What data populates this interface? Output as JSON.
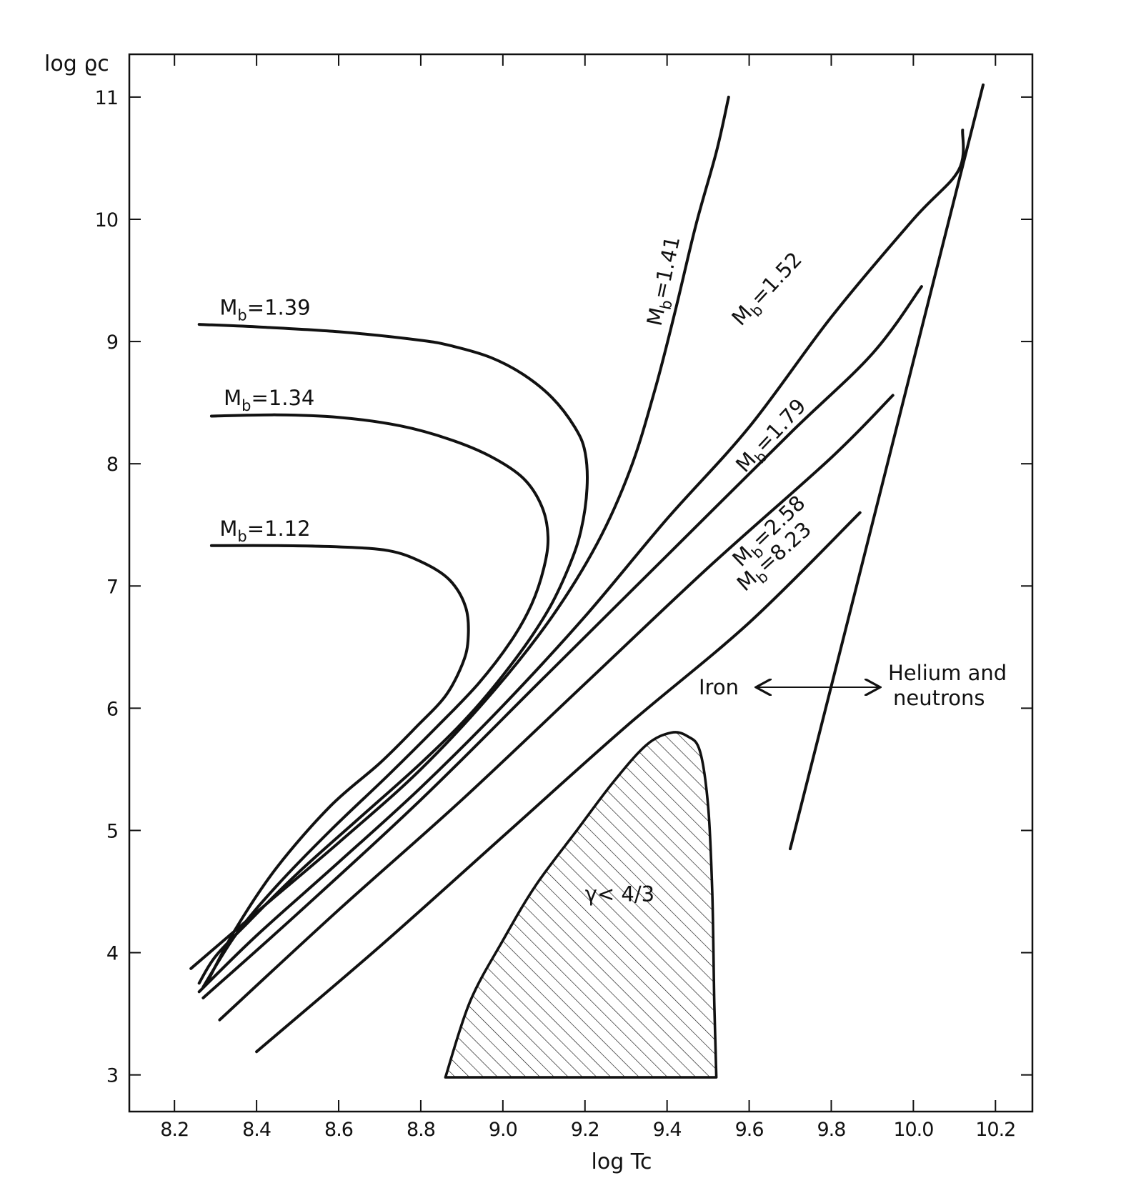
{
  "chart_data": {
    "type": "line",
    "title": "",
    "xlabel": "log Tc",
    "ylabel": "log ϱc",
    "xlim": [
      8.09,
      10.29
    ],
    "ylim": [
      2.7,
      11.35
    ],
    "x_ticks": [
      8.2,
      8.4,
      8.6,
      8.8,
      9.0,
      9.2,
      9.4,
      9.6,
      9.8,
      10.0,
      10.2
    ],
    "x_tick_labels": [
      "8.2",
      "8.4",
      "8.6",
      "8.8",
      "9.0",
      "9.2",
      "9.4",
      "9.6",
      "9.8",
      "10.0",
      "10.2"
    ],
    "y_ticks": [
      3,
      4,
      5,
      6,
      7,
      8,
      9,
      10,
      11
    ],
    "y_tick_labels": [
      "3",
      "4",
      "5",
      "6",
      "7",
      "8",
      "9",
      "10",
      "11"
    ],
    "grid": false,
    "series": [
      {
        "id": "mb139",
        "label_main": "M",
        "label_sub": "b",
        "label_value": "=1.39",
        "label_position": "above-left",
        "points": [
          [
            8.26,
            9.14
          ],
          [
            8.4,
            9.12
          ],
          [
            8.6,
            9.08
          ],
          [
            8.8,
            9.01
          ],
          [
            8.88,
            8.96
          ],
          [
            8.97,
            8.87
          ],
          [
            9.05,
            8.73
          ],
          [
            9.12,
            8.54
          ],
          [
            9.175,
            8.3
          ],
          [
            9.2,
            8.1
          ],
          [
            9.205,
            7.8
          ],
          [
            9.19,
            7.45
          ],
          [
            9.16,
            7.15
          ],
          [
            9.11,
            6.8
          ],
          [
            9.03,
            6.4
          ],
          [
            8.92,
            5.95
          ],
          [
            8.8,
            5.55
          ],
          [
            8.65,
            5.1
          ],
          [
            8.5,
            4.65
          ],
          [
            8.38,
            4.25
          ],
          [
            8.3,
            3.97
          ],
          [
            8.26,
            3.75
          ]
        ]
      },
      {
        "id": "mb134",
        "label_main": "M",
        "label_sub": "b",
        "label_value": "=1.34",
        "label_position": "above-left",
        "points": [
          [
            8.29,
            8.39
          ],
          [
            8.45,
            8.4
          ],
          [
            8.6,
            8.38
          ],
          [
            8.75,
            8.31
          ],
          [
            8.87,
            8.2
          ],
          [
            8.97,
            8.06
          ],
          [
            9.05,
            7.88
          ],
          [
            9.095,
            7.65
          ],
          [
            9.11,
            7.4
          ],
          [
            9.1,
            7.15
          ],
          [
            9.07,
            6.85
          ],
          [
            9.02,
            6.55
          ],
          [
            8.94,
            6.2
          ],
          [
            8.84,
            5.85
          ],
          [
            8.72,
            5.45
          ],
          [
            8.58,
            5.0
          ],
          [
            8.45,
            4.55
          ],
          [
            8.35,
            4.15
          ],
          [
            8.27,
            3.72
          ]
        ]
      },
      {
        "id": "mb112",
        "label_main": "M",
        "label_sub": "b",
        "label_value": "=1.12",
        "label_position": "above-left",
        "points": [
          [
            8.29,
            7.33
          ],
          [
            8.45,
            7.33
          ],
          [
            8.6,
            7.32
          ],
          [
            8.72,
            7.29
          ],
          [
            8.8,
            7.2
          ],
          [
            8.87,
            7.05
          ],
          [
            8.91,
            6.82
          ],
          [
            8.915,
            6.55
          ],
          [
            8.9,
            6.35
          ],
          [
            8.86,
            6.1
          ],
          [
            8.79,
            5.85
          ],
          [
            8.7,
            5.55
          ],
          [
            8.58,
            5.2
          ],
          [
            8.45,
            4.7
          ],
          [
            8.35,
            4.2
          ],
          [
            8.28,
            3.76
          ]
        ]
      },
      {
        "id": "mb141",
        "label_main": "M",
        "label_sub": "b",
        "label_value": "=1.41",
        "label_position": "along-curve",
        "points": [
          [
            8.24,
            3.87
          ],
          [
            8.4,
            4.33
          ],
          [
            8.6,
            4.9
          ],
          [
            8.8,
            5.5
          ],
          [
            8.98,
            6.15
          ],
          [
            9.12,
            6.75
          ],
          [
            9.23,
            7.35
          ],
          [
            9.31,
            7.95
          ],
          [
            9.37,
            8.6
          ],
          [
            9.42,
            9.25
          ],
          [
            9.47,
            9.95
          ],
          [
            9.52,
            10.55
          ],
          [
            9.55,
            11.0
          ]
        ]
      },
      {
        "id": "mb152",
        "label_main": "M",
        "label_sub": "b",
        "label_value": "=1.52",
        "label_position": "along-curve",
        "points": [
          [
            8.26,
            3.68
          ],
          [
            8.4,
            4.14
          ],
          [
            8.6,
            4.74
          ],
          [
            8.8,
            5.35
          ],
          [
            9.0,
            6.02
          ],
          [
            9.2,
            6.75
          ],
          [
            9.4,
            7.55
          ],
          [
            9.6,
            8.3
          ],
          [
            9.8,
            9.2
          ],
          [
            10.0,
            10.0
          ],
          [
            10.11,
            10.4
          ],
          [
            10.12,
            10.73
          ]
        ]
      },
      {
        "id": "mb179",
        "label_main": "M",
        "label_sub": "b",
        "label_value": "=1.79",
        "label_position": "along-curve",
        "points": [
          [
            8.27,
            3.63
          ],
          [
            8.5,
            4.32
          ],
          [
            8.8,
            5.25
          ],
          [
            9.1,
            6.25
          ],
          [
            9.4,
            7.25
          ],
          [
            9.7,
            8.25
          ],
          [
            9.9,
            8.9
          ],
          [
            10.02,
            9.45
          ]
        ]
      },
      {
        "id": "mb258",
        "label_main": "M",
        "label_sub": "b",
        "label_value": "=2.58",
        "label_position": "along-curve",
        "points": [
          [
            8.31,
            3.45
          ],
          [
            8.6,
            4.35
          ],
          [
            8.9,
            5.25
          ],
          [
            9.2,
            6.2
          ],
          [
            9.5,
            7.15
          ],
          [
            9.8,
            8.05
          ],
          [
            9.95,
            8.56
          ]
        ]
      },
      {
        "id": "mb823",
        "label_main": "M",
        "label_sub": "b",
        "label_value": "=8.23",
        "label_position": "along-curve",
        "points": [
          [
            8.4,
            3.19
          ],
          [
            8.7,
            4.05
          ],
          [
            9.0,
            4.95
          ],
          [
            9.3,
            5.85
          ],
          [
            9.6,
            6.7
          ],
          [
            9.87,
            7.6
          ]
        ]
      },
      {
        "id": "boundary",
        "label": "",
        "points": [
          [
            9.7,
            4.85
          ],
          [
            10.17,
            11.1
          ]
        ]
      }
    ],
    "regions": [
      {
        "id": "gamma-region",
        "label": "γ< 4/3",
        "fill": "hatched",
        "points": [
          [
            8.86,
            2.98
          ],
          [
            8.92,
            3.6
          ],
          [
            9.0,
            4.1
          ],
          [
            9.08,
            4.55
          ],
          [
            9.18,
            5.0
          ],
          [
            9.27,
            5.4
          ],
          [
            9.35,
            5.7
          ],
          [
            9.41,
            5.8
          ],
          [
            9.45,
            5.77
          ],
          [
            9.48,
            5.65
          ],
          [
            9.5,
            5.2
          ],
          [
            9.51,
            4.5
          ],
          [
            9.515,
            3.6
          ],
          [
            9.52,
            2.98
          ]
        ]
      }
    ],
    "annotations": {
      "iron": "Iron",
      "helium_line1": "Helium and",
      "helium_line2": "neutrons"
    }
  }
}
